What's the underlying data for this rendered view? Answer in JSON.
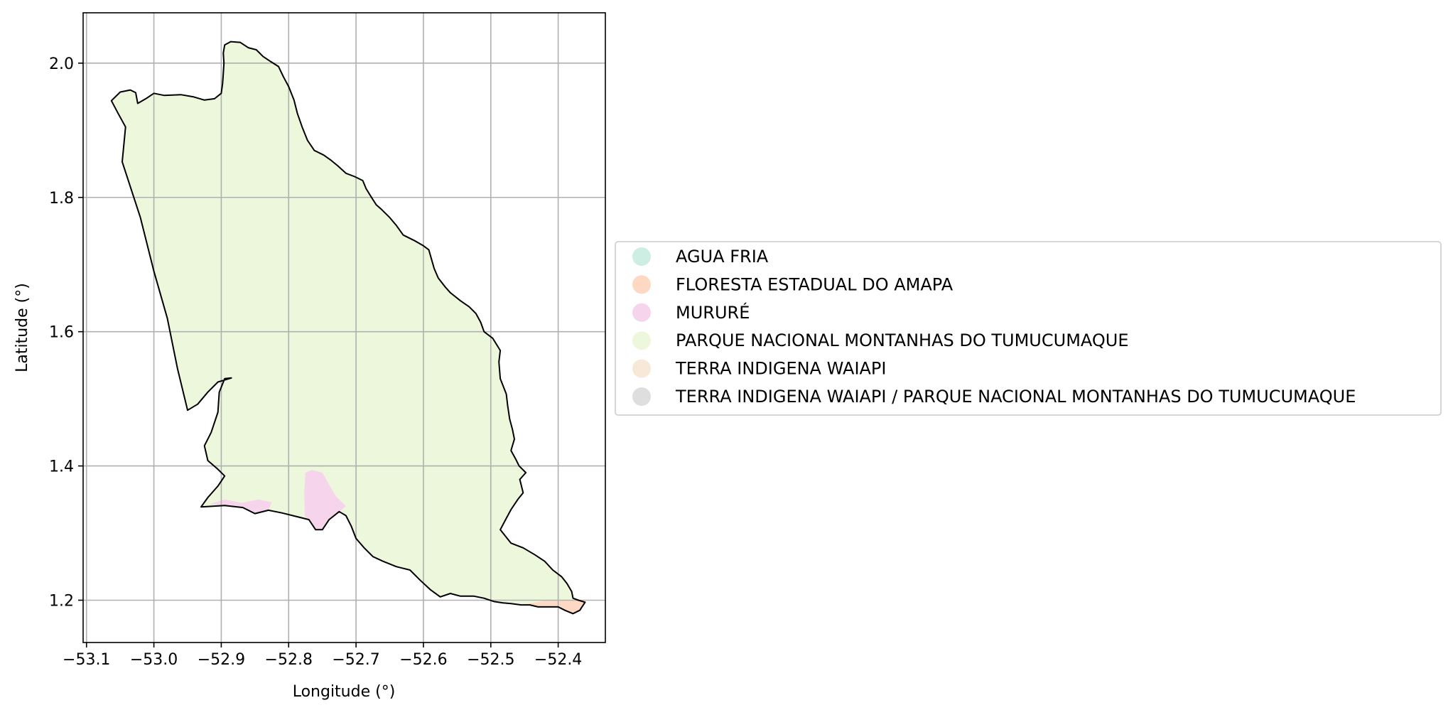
{
  "chart_data": {
    "type": "map",
    "xlabel": "Longitude (°)",
    "ylabel": "Latitude (°)",
    "xlim": [
      -53.105,
      -52.33
    ],
    "ylim": [
      1.137,
      2.075
    ],
    "x_ticks": [
      {
        "value": -53.1,
        "label": "−53.1"
      },
      {
        "value": -53.0,
        "label": "−53.0"
      },
      {
        "value": -52.9,
        "label": "−52.9"
      },
      {
        "value": -52.8,
        "label": "−52.8"
      },
      {
        "value": -52.7,
        "label": "−52.7"
      },
      {
        "value": -52.6,
        "label": "−52.6"
      },
      {
        "value": -52.5,
        "label": "−52.5"
      },
      {
        "value": -52.4,
        "label": "−52.4"
      }
    ],
    "y_ticks": [
      {
        "value": 1.2,
        "label": "1.2"
      },
      {
        "value": 1.4,
        "label": "1.4"
      },
      {
        "value": 1.6,
        "label": "1.6"
      },
      {
        "value": 1.8,
        "label": "1.8"
      },
      {
        "value": 2.0,
        "label": "2.0"
      }
    ],
    "grid": true,
    "legend_position": "right",
    "legend": [
      {
        "label": "AGUA FRIA",
        "color": "#cdeee2"
      },
      {
        "label": "FLORESTA ESTADUAL DO AMAPA",
        "color": "#fdd9c3"
      },
      {
        "label": "MURURÉ",
        "color": "#f6d5ec"
      },
      {
        "label": "PARQUE NACIONAL MONTANHAS DO TUMUCUMAQUE",
        "color": "#edf7dc"
      },
      {
        "label": "TERRA INDIGENA WAIAPI",
        "color": "#f8e8d8"
      },
      {
        "label": "TERRA INDIGENA WAIAPI / PARQUE NACIONAL MONTANHAS DO TUMUCUMAQUE",
        "color": "#dedede"
      }
    ],
    "regions": [
      {
        "name": "PARQUE NACIONAL MONTANHAS DO TUMUCUMAQUE",
        "color": "#edf7dc",
        "outlined": true,
        "coords": [
          [
            -53.063,
            1.944
          ],
          [
            -53.05,
            1.957
          ],
          [
            -53.035,
            1.96
          ],
          [
            -53.027,
            1.956
          ],
          [
            -53.024,
            1.94
          ],
          [
            -53.012,
            1.947
          ],
          [
            -53.0,
            1.955
          ],
          [
            -52.985,
            1.952
          ],
          [
            -52.96,
            1.953
          ],
          [
            -52.942,
            1.95
          ],
          [
            -52.925,
            1.945
          ],
          [
            -52.91,
            1.947
          ],
          [
            -52.9,
            1.955
          ],
          [
            -52.898,
            1.97
          ],
          [
            -52.897,
            1.985
          ],
          [
            -52.896,
            2.0
          ],
          [
            -52.897,
            2.015
          ],
          [
            -52.895,
            2.027
          ],
          [
            -52.886,
            2.032
          ],
          [
            -52.872,
            2.031
          ],
          [
            -52.86,
            2.023
          ],
          [
            -52.848,
            2.02
          ],
          [
            -52.838,
            2.01
          ],
          [
            -52.826,
            2.002
          ],
          [
            -52.815,
            1.995
          ],
          [
            -52.808,
            1.98
          ],
          [
            -52.8,
            1.965
          ],
          [
            -52.792,
            1.945
          ],
          [
            -52.787,
            1.925
          ],
          [
            -52.78,
            1.905
          ],
          [
            -52.772,
            1.885
          ],
          [
            -52.762,
            1.87
          ],
          [
            -52.748,
            1.863
          ],
          [
            -52.738,
            1.856
          ],
          [
            -52.727,
            1.847
          ],
          [
            -52.715,
            1.836
          ],
          [
            -52.702,
            1.831
          ],
          [
            -52.69,
            1.825
          ],
          [
            -52.685,
            1.813
          ],
          [
            -52.677,
            1.8
          ],
          [
            -52.67,
            1.789
          ],
          [
            -52.662,
            1.782
          ],
          [
            -52.65,
            1.77
          ],
          [
            -52.64,
            1.758
          ],
          [
            -52.63,
            1.744
          ],
          [
            -52.612,
            1.735
          ],
          [
            -52.6,
            1.728
          ],
          [
            -52.592,
            1.722
          ],
          [
            -52.588,
            1.708
          ],
          [
            -52.584,
            1.694
          ],
          [
            -52.578,
            1.68
          ],
          [
            -52.568,
            1.667
          ],
          [
            -52.56,
            1.658
          ],
          [
            -52.545,
            1.646
          ],
          [
            -52.532,
            1.637
          ],
          [
            -52.522,
            1.627
          ],
          [
            -52.515,
            1.614
          ],
          [
            -52.51,
            1.6
          ],
          [
            -52.497,
            1.59
          ],
          [
            -52.486,
            1.572
          ],
          [
            -52.488,
            1.555
          ],
          [
            -52.486,
            1.53
          ],
          [
            -52.477,
            1.507
          ],
          [
            -52.475,
            1.49
          ],
          [
            -52.472,
            1.47
          ],
          [
            -52.468,
            1.455
          ],
          [
            -52.465,
            1.44
          ],
          [
            -52.47,
            1.423
          ],
          [
            -52.463,
            1.41
          ],
          [
            -52.458,
            1.4
          ],
          [
            -52.448,
            1.39
          ],
          [
            -52.457,
            1.38
          ],
          [
            -52.452,
            1.36
          ],
          [
            -52.46,
            1.35
          ],
          [
            -52.47,
            1.335
          ],
          [
            -52.478,
            1.32
          ],
          [
            -52.486,
            1.305
          ],
          [
            -52.47,
            1.285
          ],
          [
            -52.452,
            1.278
          ],
          [
            -52.435,
            1.268
          ],
          [
            -52.42,
            1.258
          ],
          [
            -52.408,
            1.245
          ],
          [
            -52.395,
            1.235
          ],
          [
            -52.387,
            1.225
          ],
          [
            -52.38,
            1.213
          ],
          [
            -52.378,
            1.203
          ],
          [
            -52.37,
            1.2
          ],
          [
            -52.36,
            1.197
          ],
          [
            -52.368,
            1.185
          ],
          [
            -52.378,
            1.18
          ],
          [
            -52.39,
            1.185
          ],
          [
            -52.4,
            1.19
          ],
          [
            -52.415,
            1.19
          ],
          [
            -52.43,
            1.19
          ],
          [
            -52.442,
            1.193
          ],
          [
            -52.455,
            1.193
          ],
          [
            -52.47,
            1.195
          ],
          [
            -52.482,
            1.196
          ],
          [
            -52.495,
            1.198
          ],
          [
            -52.51,
            1.203
          ],
          [
            -52.525,
            1.206
          ],
          [
            -52.545,
            1.206
          ],
          [
            -52.56,
            1.21
          ],
          [
            -52.575,
            1.205
          ],
          [
            -52.59,
            1.216
          ],
          [
            -52.605,
            1.23
          ],
          [
            -52.62,
            1.245
          ],
          [
            -52.64,
            1.25
          ],
          [
            -52.66,
            1.258
          ],
          [
            -52.675,
            1.265
          ],
          [
            -52.688,
            1.278
          ],
          [
            -52.7,
            1.292
          ],
          [
            -52.707,
            1.31
          ],
          [
            -52.715,
            1.326
          ],
          [
            -52.725,
            1.332
          ],
          [
            -52.74,
            1.32
          ],
          [
            -52.75,
            1.305
          ],
          [
            -52.76,
            1.305
          ],
          [
            -52.77,
            1.32
          ],
          [
            -52.79,
            1.325
          ],
          [
            -52.81,
            1.33
          ],
          [
            -52.83,
            1.334
          ],
          [
            -52.85,
            1.329
          ],
          [
            -52.868,
            1.338
          ],
          [
            -52.895,
            1.341
          ],
          [
            -52.93,
            1.339
          ],
          [
            -52.92,
            1.353
          ],
          [
            -52.905,
            1.37
          ],
          [
            -52.895,
            1.385
          ],
          [
            -52.905,
            1.395
          ],
          [
            -52.92,
            1.408
          ],
          [
            -52.925,
            1.43
          ],
          [
            -52.915,
            1.45
          ],
          [
            -52.905,
            1.48
          ],
          [
            -52.903,
            1.51
          ],
          [
            -52.895,
            1.53
          ],
          [
            -52.885,
            1.531
          ],
          [
            -52.905,
            1.525
          ],
          [
            -52.92,
            1.51
          ],
          [
            -52.935,
            1.492
          ],
          [
            -52.95,
            1.483
          ],
          [
            -52.965,
            1.545
          ],
          [
            -52.98,
            1.62
          ],
          [
            -53.0,
            1.69
          ],
          [
            -53.02,
            1.77
          ],
          [
            -53.047,
            1.853
          ],
          [
            -53.042,
            1.905
          ],
          [
            -53.053,
            1.925
          ]
        ]
      },
      {
        "name": "MURURÉ",
        "color": "#f6d5ec",
        "outlined": false,
        "coords": [
          [
            -52.775,
            1.39
          ],
          [
            -52.765,
            1.394
          ],
          [
            -52.75,
            1.39
          ],
          [
            -52.74,
            1.372
          ],
          [
            -52.73,
            1.355
          ],
          [
            -52.715,
            1.34
          ],
          [
            -52.725,
            1.332
          ],
          [
            -52.74,
            1.32
          ],
          [
            -52.75,
            1.305
          ],
          [
            -52.76,
            1.305
          ],
          [
            -52.77,
            1.32
          ],
          [
            -52.776,
            1.325
          ],
          [
            -52.777,
            1.36
          ]
        ]
      },
      {
        "name": "MURURÉ",
        "color": "#f6d5ec",
        "outlined": false,
        "coords": [
          [
            -52.918,
            1.343
          ],
          [
            -52.895,
            1.35
          ],
          [
            -52.87,
            1.345
          ],
          [
            -52.845,
            1.35
          ],
          [
            -52.825,
            1.346
          ],
          [
            -52.83,
            1.334
          ],
          [
            -52.85,
            1.329
          ],
          [
            -52.868,
            1.338
          ],
          [
            -52.895,
            1.341
          ]
        ]
      },
      {
        "name": "FLORESTA ESTADUAL DO AMAPA",
        "color": "#fdd9c3",
        "outlined": false,
        "coords": [
          [
            -52.455,
            1.193
          ],
          [
            -52.42,
            1.199
          ],
          [
            -52.39,
            1.2
          ],
          [
            -52.37,
            1.2
          ],
          [
            -52.36,
            1.197
          ],
          [
            -52.368,
            1.185
          ],
          [
            -52.378,
            1.18
          ],
          [
            -52.39,
            1.185
          ],
          [
            -52.4,
            1.19
          ],
          [
            -52.415,
            1.19
          ],
          [
            -52.43,
            1.19
          ],
          [
            -52.442,
            1.193
          ]
        ]
      }
    ]
  }
}
